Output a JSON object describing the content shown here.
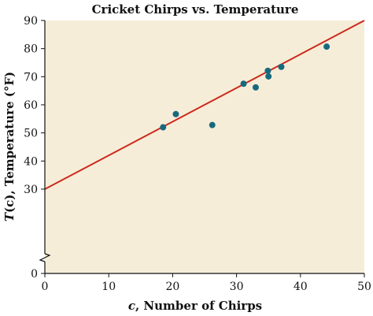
{
  "chart_data": {
    "type": "scatter",
    "title": "Cricket Chirps vs. Temperature",
    "xlabel_var": "c",
    "xlabel_rest": ", Number of Chirps",
    "ylabel_var": "T",
    "ylabel_rest": "(c), Temperature (°F)",
    "xlim": [
      0,
      50
    ],
    "ylim": [
      0,
      90
    ],
    "x_ticks": [
      0,
      10,
      20,
      30,
      40,
      50
    ],
    "y_ticks": [
      0,
      30,
      40,
      50,
      60,
      70,
      80,
      90
    ],
    "y_axis_break": true,
    "grid": false,
    "background_color": "#f6edd8",
    "point_color": "#176a7e",
    "line_color": "#cc2a1e",
    "points": [
      {
        "x": 18.5,
        "y": 52
      },
      {
        "x": 20.5,
        "y": 56.7
      },
      {
        "x": 26.2,
        "y": 52.8
      },
      {
        "x": 31.1,
        "y": 67.5
      },
      {
        "x": 33.0,
        "y": 66.2
      },
      {
        "x": 34.9,
        "y": 72.1
      },
      {
        "x": 35.0,
        "y": 70.1
      },
      {
        "x": 37.0,
        "y": 73.5
      },
      {
        "x": 44.1,
        "y": 80.7
      }
    ],
    "regression_line": {
      "slope": 1.2,
      "intercept": 30
    }
  }
}
